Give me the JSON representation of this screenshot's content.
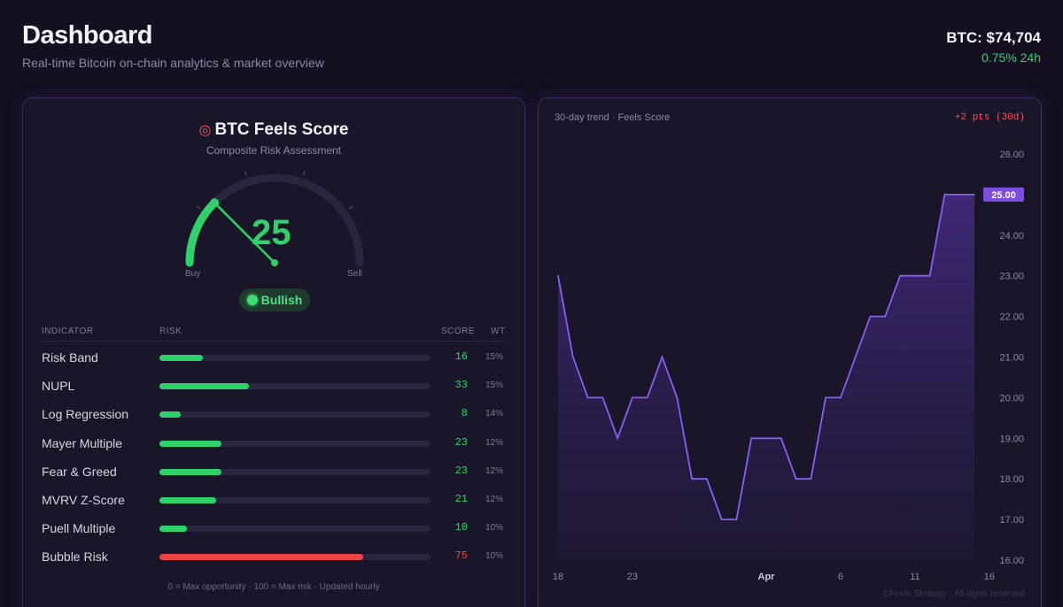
{
  "header": {
    "title": "Dashboard",
    "subtitle": "Real-time Bitcoin on-chain analytics & market overview",
    "price": "BTC: $74,704",
    "change": "0.75% 24h"
  },
  "score_card": {
    "icon": "dart-target-icon",
    "title": "BTC Feels Score",
    "subtitle": "Composite Risk Assessment",
    "value": "25",
    "gauge_value": 25,
    "gauge_min_label": "Buy",
    "gauge_max_label": "Sell",
    "status": "Bullish",
    "accent": "#2fd26a"
  },
  "table": {
    "headers": {
      "indicator": "INDICATOR",
      "risk": "RISK",
      "score": "SCORE",
      "wt": "WT"
    },
    "rows": [
      {
        "name": "Risk Band",
        "score": 16,
        "wt": "15%",
        "color": "#2fd26a"
      },
      {
        "name": "NUPL",
        "score": 33,
        "wt": "15%",
        "color": "#2fd26a"
      },
      {
        "name": "Log Regression",
        "score": 8,
        "wt": "14%",
        "color": "#2fd26a"
      },
      {
        "name": "Mayer Multiple",
        "score": 23,
        "wt": "12%",
        "color": "#2fd26a"
      },
      {
        "name": "Fear & Greed",
        "score": 23,
        "wt": "12%",
        "color": "#2fd26a"
      },
      {
        "name": "MVRV Z-Score",
        "score": 21,
        "wt": "12%",
        "color": "#2fd26a"
      },
      {
        "name": "Puell Multiple",
        "score": 10,
        "wt": "10%",
        "color": "#2fd26a"
      },
      {
        "name": "Bubble Risk",
        "score": 75,
        "wt": "10%",
        "color": "#ef4444"
      }
    ],
    "footnote": "0 = Max opportunity · 100 = Max risk · Updated hourly"
  },
  "trend": {
    "label": "30-day trend · Feels Score",
    "delta": "+2 pts (30d)",
    "copyright": "©Feels Strategy · All rights reserved"
  },
  "chart_data": {
    "type": "area",
    "title": "30-day trend · Feels Score",
    "series": [
      {
        "name": "Feels Score",
        "values": [
          23,
          21,
          20,
          20,
          19,
          20,
          20,
          21,
          20,
          18,
          18,
          17,
          17,
          19,
          19,
          19,
          18,
          18,
          20,
          20,
          21,
          22,
          22,
          23,
          23,
          23,
          25,
          25,
          25
        ]
      }
    ],
    "x_tick_labels": [
      "18",
      "23",
      "Apr",
      "6",
      "11",
      "16"
    ],
    "x_tick_index": [
      0,
      5,
      14,
      19,
      24,
      29
    ],
    "ylim": [
      16,
      26
    ],
    "y_ticks": [
      "16.00",
      "17.00",
      "18.00",
      "19.00",
      "20.00",
      "21.00",
      "22.00",
      "23.00",
      "24.00",
      "25.00",
      "26.00"
    ],
    "last_value_label": "25.00",
    "line_color": "#8b5cf6"
  }
}
